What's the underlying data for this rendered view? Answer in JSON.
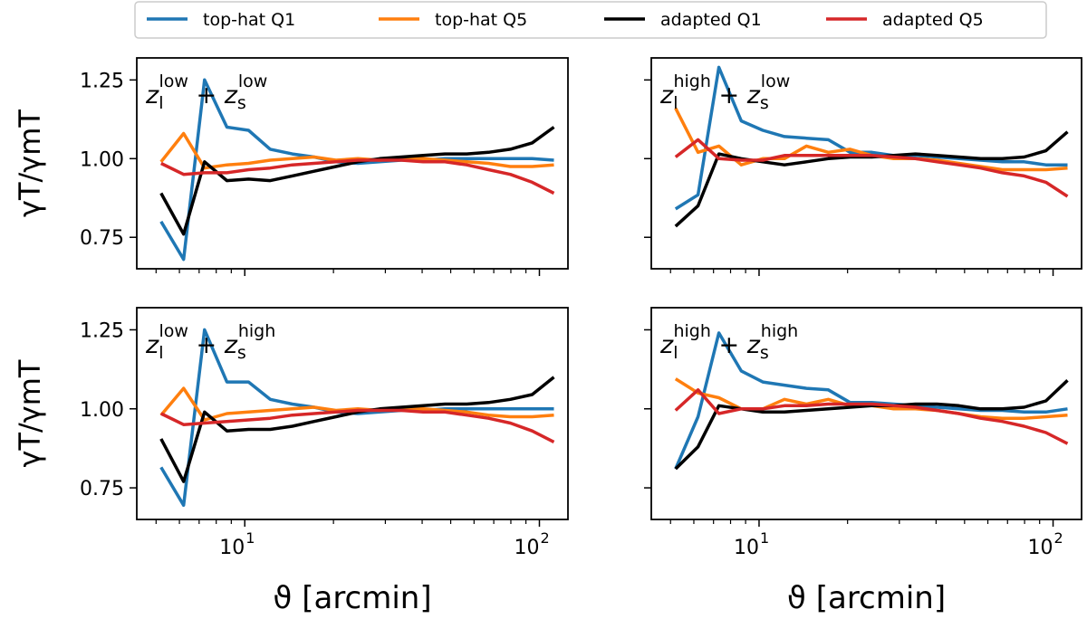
{
  "chart_data": {
    "type": "line",
    "legend": {
      "position": "top-center",
      "entries": [
        {
          "label": "top-hat Q1",
          "color": "#1f77b4"
        },
        {
          "label": "top-hat Q5",
          "color": "#ff7f0e"
        },
        {
          "label": "adapted Q1",
          "color": "#000000"
        },
        {
          "label": "adapted Q5",
          "color": "#d62728"
        }
      ]
    },
    "x": [
      5.2,
      6.2,
      7.3,
      8.7,
      10.3,
      12.2,
      14.5,
      17.2,
      20.4,
      24.2,
      28.7,
      34.0,
      40.3,
      47.8,
      56.7,
      67.2,
      79.7,
      94.5,
      112.0
    ],
    "xscale": "log",
    "xlim": [
      4.3,
      125
    ],
    "ylim": [
      0.65,
      1.32
    ],
    "ylabel": "γT/γmT",
    "xlabel": "ϑ [arcmin]",
    "xtick_labels": [
      "10",
      "10"
    ],
    "xtick_label_exponents": [
      "1",
      "2"
    ],
    "ytick_labels": [
      "0.75",
      "1.00",
      "1.25"
    ],
    "panels": [
      {
        "annotation": {
          "zl_sup": "low",
          "zs_sup": "low"
        },
        "series": [
          {
            "name": "top-hat Q1",
            "values": [
              0.8,
              0.68,
              1.25,
              1.1,
              1.09,
              1.03,
              1.015,
              1.005,
              0.99,
              0.985,
              0.99,
              0.995,
              0.995,
              1.0,
              1.0,
              1.0,
              1.0,
              1.0,
              0.995
            ]
          },
          {
            "name": "top-hat Q5",
            "values": [
              0.99,
              1.08,
              0.97,
              0.98,
              0.985,
              0.995,
              1.0,
              1.005,
              0.995,
              1.0,
              0.995,
              1.0,
              1.0,
              0.995,
              0.99,
              0.985,
              0.975,
              0.975,
              0.98
            ]
          },
          {
            "name": "adapted Q1",
            "values": [
              0.89,
              0.76,
              0.99,
              0.93,
              0.935,
              0.93,
              0.945,
              0.96,
              0.975,
              0.99,
              1.0,
              1.005,
              1.01,
              1.015,
              1.015,
              1.02,
              1.03,
              1.05,
              1.1
            ]
          },
          {
            "name": "adapted Q5",
            "values": [
              0.985,
              0.95,
              0.955,
              0.955,
              0.965,
              0.97,
              0.98,
              0.985,
              0.99,
              0.995,
              0.995,
              0.995,
              0.99,
              0.99,
              0.98,
              0.965,
              0.95,
              0.925,
              0.89
            ]
          }
        ]
      },
      {
        "annotation": {
          "zl_sup": "high",
          "zs_sup": "low"
        },
        "series": [
          {
            "name": "top-hat Q1",
            "values": [
              0.84,
              0.885,
              1.29,
              1.12,
              1.09,
              1.07,
              1.065,
              1.06,
              1.02,
              1.02,
              1.01,
              1.01,
              1.005,
              1.0,
              0.995,
              0.99,
              0.99,
              0.98,
              0.98
            ]
          },
          {
            "name": "top-hat Q5",
            "values": [
              1.16,
              1.02,
              1.04,
              0.98,
              1.0,
              1.0,
              1.04,
              1.02,
              1.03,
              1.01,
              1.0,
              1.0,
              0.995,
              0.985,
              0.975,
              0.965,
              0.965,
              0.965,
              0.97
            ]
          },
          {
            "name": "adapted Q1",
            "values": [
              0.785,
              0.85,
              1.015,
              1.0,
              0.99,
              0.98,
              0.99,
              1.0,
              1.005,
              1.005,
              1.01,
              1.015,
              1.01,
              1.005,
              1.0,
              1.0,
              1.005,
              1.025,
              1.085
            ]
          },
          {
            "name": "adapted Q5",
            "values": [
              1.005,
              1.06,
              1.0,
              0.995,
              0.995,
              1.01,
              1.01,
              1.01,
              1.01,
              1.01,
              1.005,
              1.0,
              0.99,
              0.98,
              0.97,
              0.955,
              0.945,
              0.925,
              0.88
            ]
          }
        ]
      },
      {
        "annotation": {
          "zl_sup": "low",
          "zs_sup": "high"
        },
        "series": [
          {
            "name": "top-hat Q1",
            "values": [
              0.815,
              0.695,
              1.25,
              1.085,
              1.085,
              1.03,
              1.015,
              1.005,
              0.99,
              0.985,
              0.99,
              0.995,
              0.995,
              1.0,
              1.0,
              1.0,
              1.0,
              1.0,
              1.0
            ]
          },
          {
            "name": "top-hat Q5",
            "values": [
              0.98,
              1.065,
              0.965,
              0.985,
              0.99,
              0.995,
              1.0,
              1.005,
              0.995,
              1.0,
              0.995,
              1.0,
              1.0,
              0.995,
              0.99,
              0.98,
              0.975,
              0.975,
              0.98
            ]
          },
          {
            "name": "adapted Q1",
            "values": [
              0.905,
              0.77,
              0.99,
              0.93,
              0.935,
              0.935,
              0.945,
              0.96,
              0.975,
              0.99,
              1.0,
              1.005,
              1.01,
              1.015,
              1.015,
              1.02,
              1.03,
              1.045,
              1.1
            ]
          },
          {
            "name": "adapted Q5",
            "values": [
              0.985,
              0.95,
              0.955,
              0.96,
              0.965,
              0.97,
              0.98,
              0.985,
              0.99,
              0.995,
              0.995,
              0.995,
              0.99,
              0.99,
              0.98,
              0.97,
              0.955,
              0.93,
              0.895
            ]
          }
        ]
      },
      {
        "annotation": {
          "zl_sup": "high",
          "zs_sup": "high"
        },
        "series": [
          {
            "name": "top-hat Q1",
            "values": [
              0.81,
              0.975,
              1.24,
              1.12,
              1.085,
              1.075,
              1.065,
              1.06,
              1.02,
              1.02,
              1.015,
              1.01,
              1.005,
              1.0,
              0.995,
              0.995,
              0.99,
              0.99,
              1.0
            ]
          },
          {
            "name": "top-hat Q5",
            "values": [
              1.095,
              1.05,
              1.035,
              1.0,
              1.0,
              1.03,
              1.015,
              1.03,
              1.01,
              1.01,
              1.0,
              1.0,
              0.995,
              0.985,
              0.975,
              0.97,
              0.97,
              0.975,
              0.98
            ]
          },
          {
            "name": "adapted Q1",
            "values": [
              0.81,
              0.88,
              1.01,
              1.0,
              0.99,
              0.99,
              0.995,
              1.0,
              1.005,
              1.01,
              1.01,
              1.015,
              1.015,
              1.01,
              1.0,
              1.0,
              1.005,
              1.025,
              1.09
            ]
          },
          {
            "name": "adapted Q5",
            "values": [
              0.995,
              1.06,
              0.985,
              1.0,
              1.0,
              1.01,
              1.01,
              1.015,
              1.015,
              1.015,
              1.01,
              1.005,
              0.995,
              0.985,
              0.97,
              0.96,
              0.945,
              0.925,
              0.89
            ]
          }
        ]
      }
    ]
  }
}
